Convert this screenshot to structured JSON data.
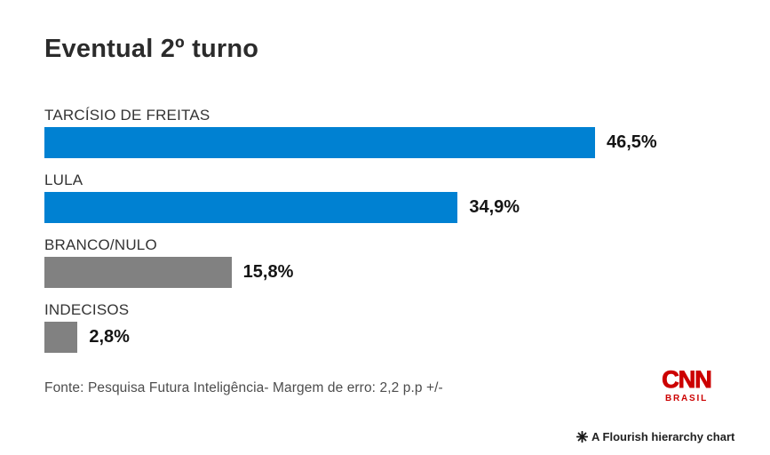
{
  "title": "Eventual 2º turno",
  "chart_data": {
    "type": "bar",
    "orientation": "horizontal",
    "title": "Eventual 2º turno",
    "categories": [
      "TARCÍSIO DE FREITAS",
      "LULA",
      "BRANCO/NULO",
      "INDECISOS"
    ],
    "values": [
      46.5,
      34.9,
      15.8,
      2.8
    ],
    "value_labels": [
      "46,5%",
      "34,9%",
      "15,8%",
      "2,8%"
    ],
    "bar_colors": [
      "#0081d2",
      "#0081d2",
      "#818181",
      "#818181"
    ],
    "xlim": [
      0,
      46.5
    ],
    "grid": false,
    "legend": "none",
    "value_label_position": "right-of-bar"
  },
  "colors": {
    "bar_blue": "#0081d2",
    "bar_gray": "#818181",
    "title_text": "#2b2b2b",
    "brand_red": "#cc0000"
  },
  "footer": {
    "source": "Fonte: Pesquisa Futura Inteligência- Margem de erro: 2,2 p.p +/-"
  },
  "branding": {
    "logo_line1": "CNN",
    "logo_line2": "BRASIL"
  },
  "attribution": {
    "icon": "flourish-asterisk-icon",
    "text": "A Flourish hierarchy chart"
  }
}
